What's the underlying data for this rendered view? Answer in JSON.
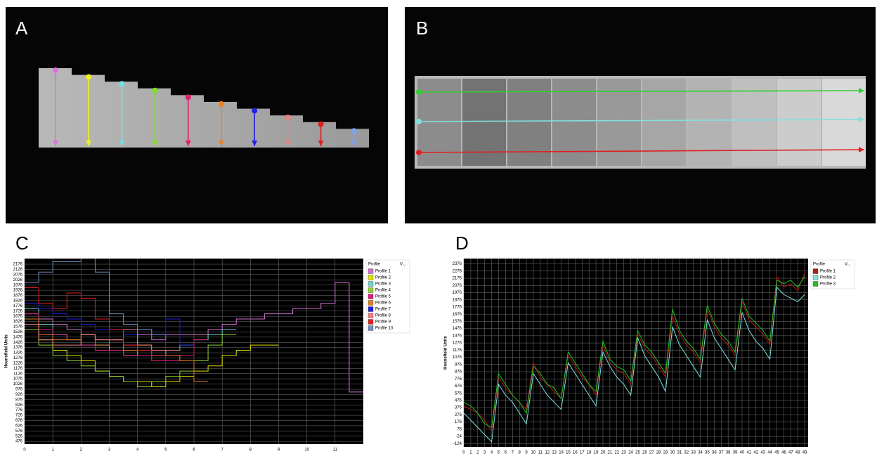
{
  "panel_labels": [
    "A",
    "B",
    "C",
    "D"
  ],
  "chart_data": [
    {
      "type": "line",
      "step": true,
      "y_label": "Hounsfield Units",
      "legend": "right",
      "legend_title": "Profile",
      "legend_value_header": "V...",
      "grid": true,
      "x": [
        0,
        0.5,
        1,
        1.5,
        2,
        2.5,
        3,
        3.5,
        4,
        4.5,
        5,
        5.5,
        6,
        6.5,
        7,
        7.5,
        8,
        8.5,
        9,
        9.5,
        10,
        10.5,
        11,
        11.5
      ],
      "xlim": [
        0,
        12
      ],
      "xticks": [
        0,
        1,
        2,
        3,
        4,
        5,
        6,
        7,
        8,
        9,
        10,
        11
      ],
      "ylim": [
        450,
        2230
      ],
      "yticks": [
        476,
        526,
        576,
        626,
        676,
        726,
        776,
        826,
        876,
        926,
        976,
        1026,
        1076,
        1126,
        1176,
        1226,
        1276,
        1326,
        1376,
        1426,
        1476,
        1526,
        1576,
        1626,
        1676,
        1726,
        1776,
        1826,
        1876,
        1926,
        1976,
        2026,
        2076,
        2126,
        2176
      ],
      "series": [
        {
          "name": "Profile 1",
          "color": "#d070d0",
          "values": [
            1700,
            1650,
            1600,
            1550,
            1500,
            1450,
            1450,
            1400,
            1500,
            1450,
            1500,
            1500,
            1500,
            1550,
            1600,
            1650,
            1650,
            1700,
            1700,
            1750,
            1750,
            1800,
            2000,
            950
          ]
        },
        {
          "name": "Profile 2",
          "color": "#e0e000",
          "values": [
            1600,
            1450,
            1350,
            1300,
            1250,
            1150,
            1100,
            1050,
            1050,
            1000,
            1050,
            1100,
            1150,
            1200,
            1300,
            1350,
            1400,
            1400,
            null,
            null,
            null,
            null,
            null,
            null
          ]
        },
        {
          "name": "Profile 3",
          "color": "#70d0d0",
          "values": [
            1750,
            1600,
            1500,
            1450,
            1400,
            1400,
            1350,
            1300,
            1350,
            1300,
            1350,
            1400,
            1450,
            1500,
            1550,
            null,
            null,
            null,
            null,
            null,
            null,
            null,
            null,
            null
          ]
        },
        {
          "name": "Profile 4",
          "color": "#90d030",
          "values": [
            1550,
            1400,
            1300,
            1250,
            1200,
            1150,
            1100,
            1050,
            1000,
            1050,
            1100,
            1150,
            1250,
            1400,
            1500,
            null,
            null,
            null,
            null,
            null,
            null,
            null,
            null,
            null
          ]
        },
        {
          "name": "Profile 5",
          "color": "#e0207a",
          "values": [
            1700,
            1550,
            1500,
            1450,
            1400,
            1350,
            1350,
            1300,
            1300,
            1250,
            1250,
            1300,
            1450,
            null,
            null,
            null,
            null,
            null,
            null,
            null,
            null,
            null,
            null,
            null
          ]
        },
        {
          "name": "Profile 6",
          "color": "#e08020",
          "values": [
            1650,
            1500,
            1450,
            1450,
            1500,
            1400,
            1450,
            1350,
            1400,
            1350,
            1300,
            1250,
            1050,
            null,
            null,
            null,
            null,
            null,
            null,
            null,
            null,
            null,
            null,
            null
          ]
        },
        {
          "name": "Profile 7",
          "color": "#2020e0",
          "values": [
            1800,
            1750,
            1700,
            1650,
            1600,
            1550,
            1550,
            1500,
            1550,
            1500,
            1650,
            1400,
            null,
            null,
            null,
            null,
            null,
            null,
            null,
            null,
            null,
            null,
            null,
            null
          ]
        },
        {
          "name": "Profile 8",
          "color": "#f08080",
          "values": [
            1600,
            1450,
            1400,
            1400,
            1500,
            1450,
            1450,
            1550,
            1400,
            1350,
            1350,
            null,
            null,
            null,
            null,
            null,
            null,
            null,
            null,
            null,
            null,
            null,
            null,
            null
          ]
        },
        {
          "name": "Profile 9",
          "color": "#e02020",
          "values": [
            1950,
            1800,
            1750,
            1900,
            1850,
            1650,
            1550,
            1400,
            1350,
            1300,
            null,
            null,
            null,
            null,
            null,
            null,
            null,
            null,
            null,
            null,
            null,
            null,
            null,
            null
          ]
        },
        {
          "name": "Profile 10",
          "color": "#7090c0",
          "values": [
            2000,
            2100,
            2200,
            2200,
            2250,
            2100,
            1700,
            1600,
            1550,
            1500,
            null,
            null,
            null,
            null,
            null,
            null,
            null,
            null,
            null,
            null,
            null,
            null,
            null,
            null
          ]
        }
      ]
    },
    {
      "type": "line",
      "step": false,
      "y_label": "Hounsfield Units",
      "legend": "right",
      "legend_title": "Profile",
      "legend_value_header": "V...",
      "grid": true,
      "x": [
        0,
        1,
        2,
        3,
        4,
        5,
        6,
        7,
        8,
        9,
        10,
        11,
        12,
        13,
        14,
        15,
        16,
        17,
        18,
        19,
        20,
        21,
        22,
        23,
        24,
        25,
        26,
        27,
        28,
        29,
        30,
        31,
        32,
        33,
        34,
        35,
        36,
        37,
        38,
        39,
        40,
        41,
        42,
        43,
        44,
        45,
        46,
        47,
        48,
        49
      ],
      "xlim": [
        0,
        49.5
      ],
      "xticks": [
        0,
        1,
        2,
        3,
        4,
        5,
        6,
        7,
        8,
        9,
        10,
        11,
        12,
        13,
        14,
        15,
        16,
        17,
        18,
        19,
        20,
        21,
        22,
        23,
        24,
        25,
        26,
        27,
        28,
        29,
        30,
        31,
        32,
        33,
        34,
        35,
        36,
        37,
        38,
        39,
        40,
        41,
        42,
        43,
        44,
        45,
        46,
        47,
        48,
        49
      ],
      "ylim": [
        -170,
        2450
      ],
      "yticks": [
        -124,
        -24,
        76,
        176,
        276,
        376,
        476,
        576,
        676,
        776,
        876,
        976,
        1076,
        1176,
        1276,
        1376,
        1476,
        1576,
        1676,
        1776,
        1876,
        1976,
        2076,
        2176,
        2276,
        2376
      ],
      "series": [
        {
          "name": "Profile 1",
          "color": "#b01818",
          "values": [
            400,
            350,
            300,
            200,
            50,
            800,
            650,
            550,
            450,
            350,
            1000,
            800,
            700,
            600,
            500,
            1100,
            950,
            800,
            700,
            550,
            1250,
            1000,
            900,
            850,
            700,
            1400,
            1200,
            1100,
            950,
            800,
            1650,
            1400,
            1250,
            1150,
            1000,
            1750,
            1500,
            1350,
            1250,
            1100,
            1850,
            1600,
            1500,
            1400,
            1250,
            2200,
            2050,
            2100,
            2000,
            2250
          ]
        },
        {
          "name": "Profile 2",
          "color": "#80e0e0",
          "values": [
            300,
            200,
            100,
            0,
            -100,
            700,
            550,
            450,
            300,
            150,
            850,
            700,
            550,
            450,
            350,
            1000,
            850,
            700,
            550,
            400,
            1150,
            950,
            800,
            700,
            550,
            1350,
            1100,
            950,
            800,
            600,
            1500,
            1250,
            1100,
            950,
            800,
            1600,
            1350,
            1200,
            1050,
            900,
            1700,
            1450,
            1300,
            1200,
            1050,
            2050,
            1950,
            1900,
            1850,
            1950
          ]
        },
        {
          "name": "Profile 3",
          "color": "#20c020",
          "values": [
            450,
            400,
            300,
            150,
            100,
            850,
            700,
            550,
            450,
            300,
            950,
            850,
            700,
            650,
            500,
            1150,
            1000,
            850,
            700,
            600,
            1300,
            1050,
            950,
            900,
            750,
            1450,
            1250,
            1150,
            1000,
            850,
            1750,
            1450,
            1300,
            1200,
            1050,
            1800,
            1550,
            1400,
            1300,
            1150,
            1900,
            1650,
            1550,
            1450,
            1300,
            2150,
            2100,
            2150,
            2050,
            2200
          ]
        }
      ]
    }
  ]
}
